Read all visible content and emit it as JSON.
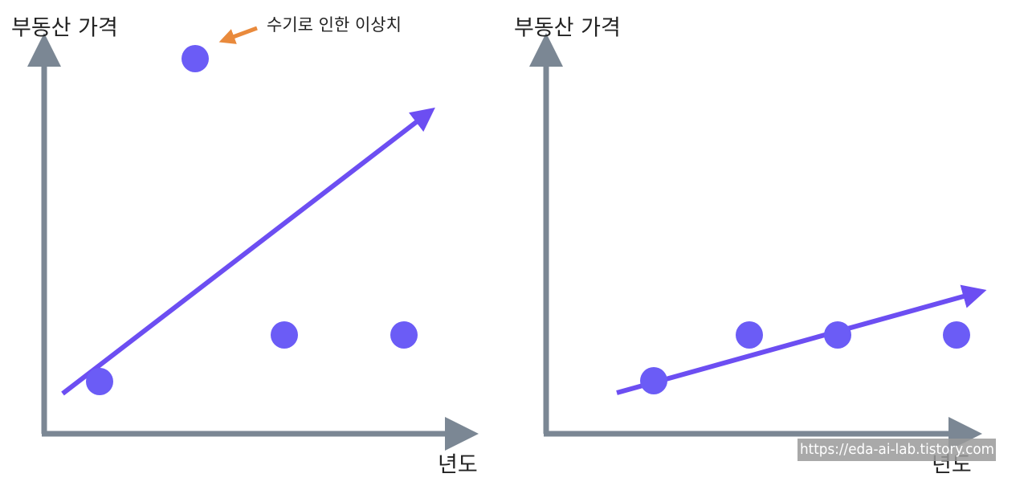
{
  "left_panel": {
    "y_label": "부동산 가격",
    "x_label": "년도",
    "annotation": "수기로 인한 이상치"
  },
  "right_panel": {
    "y_label": "부동산 가격",
    "x_label": "년도"
  },
  "watermark": "https://eda-ai-lab.tistory.com"
}
